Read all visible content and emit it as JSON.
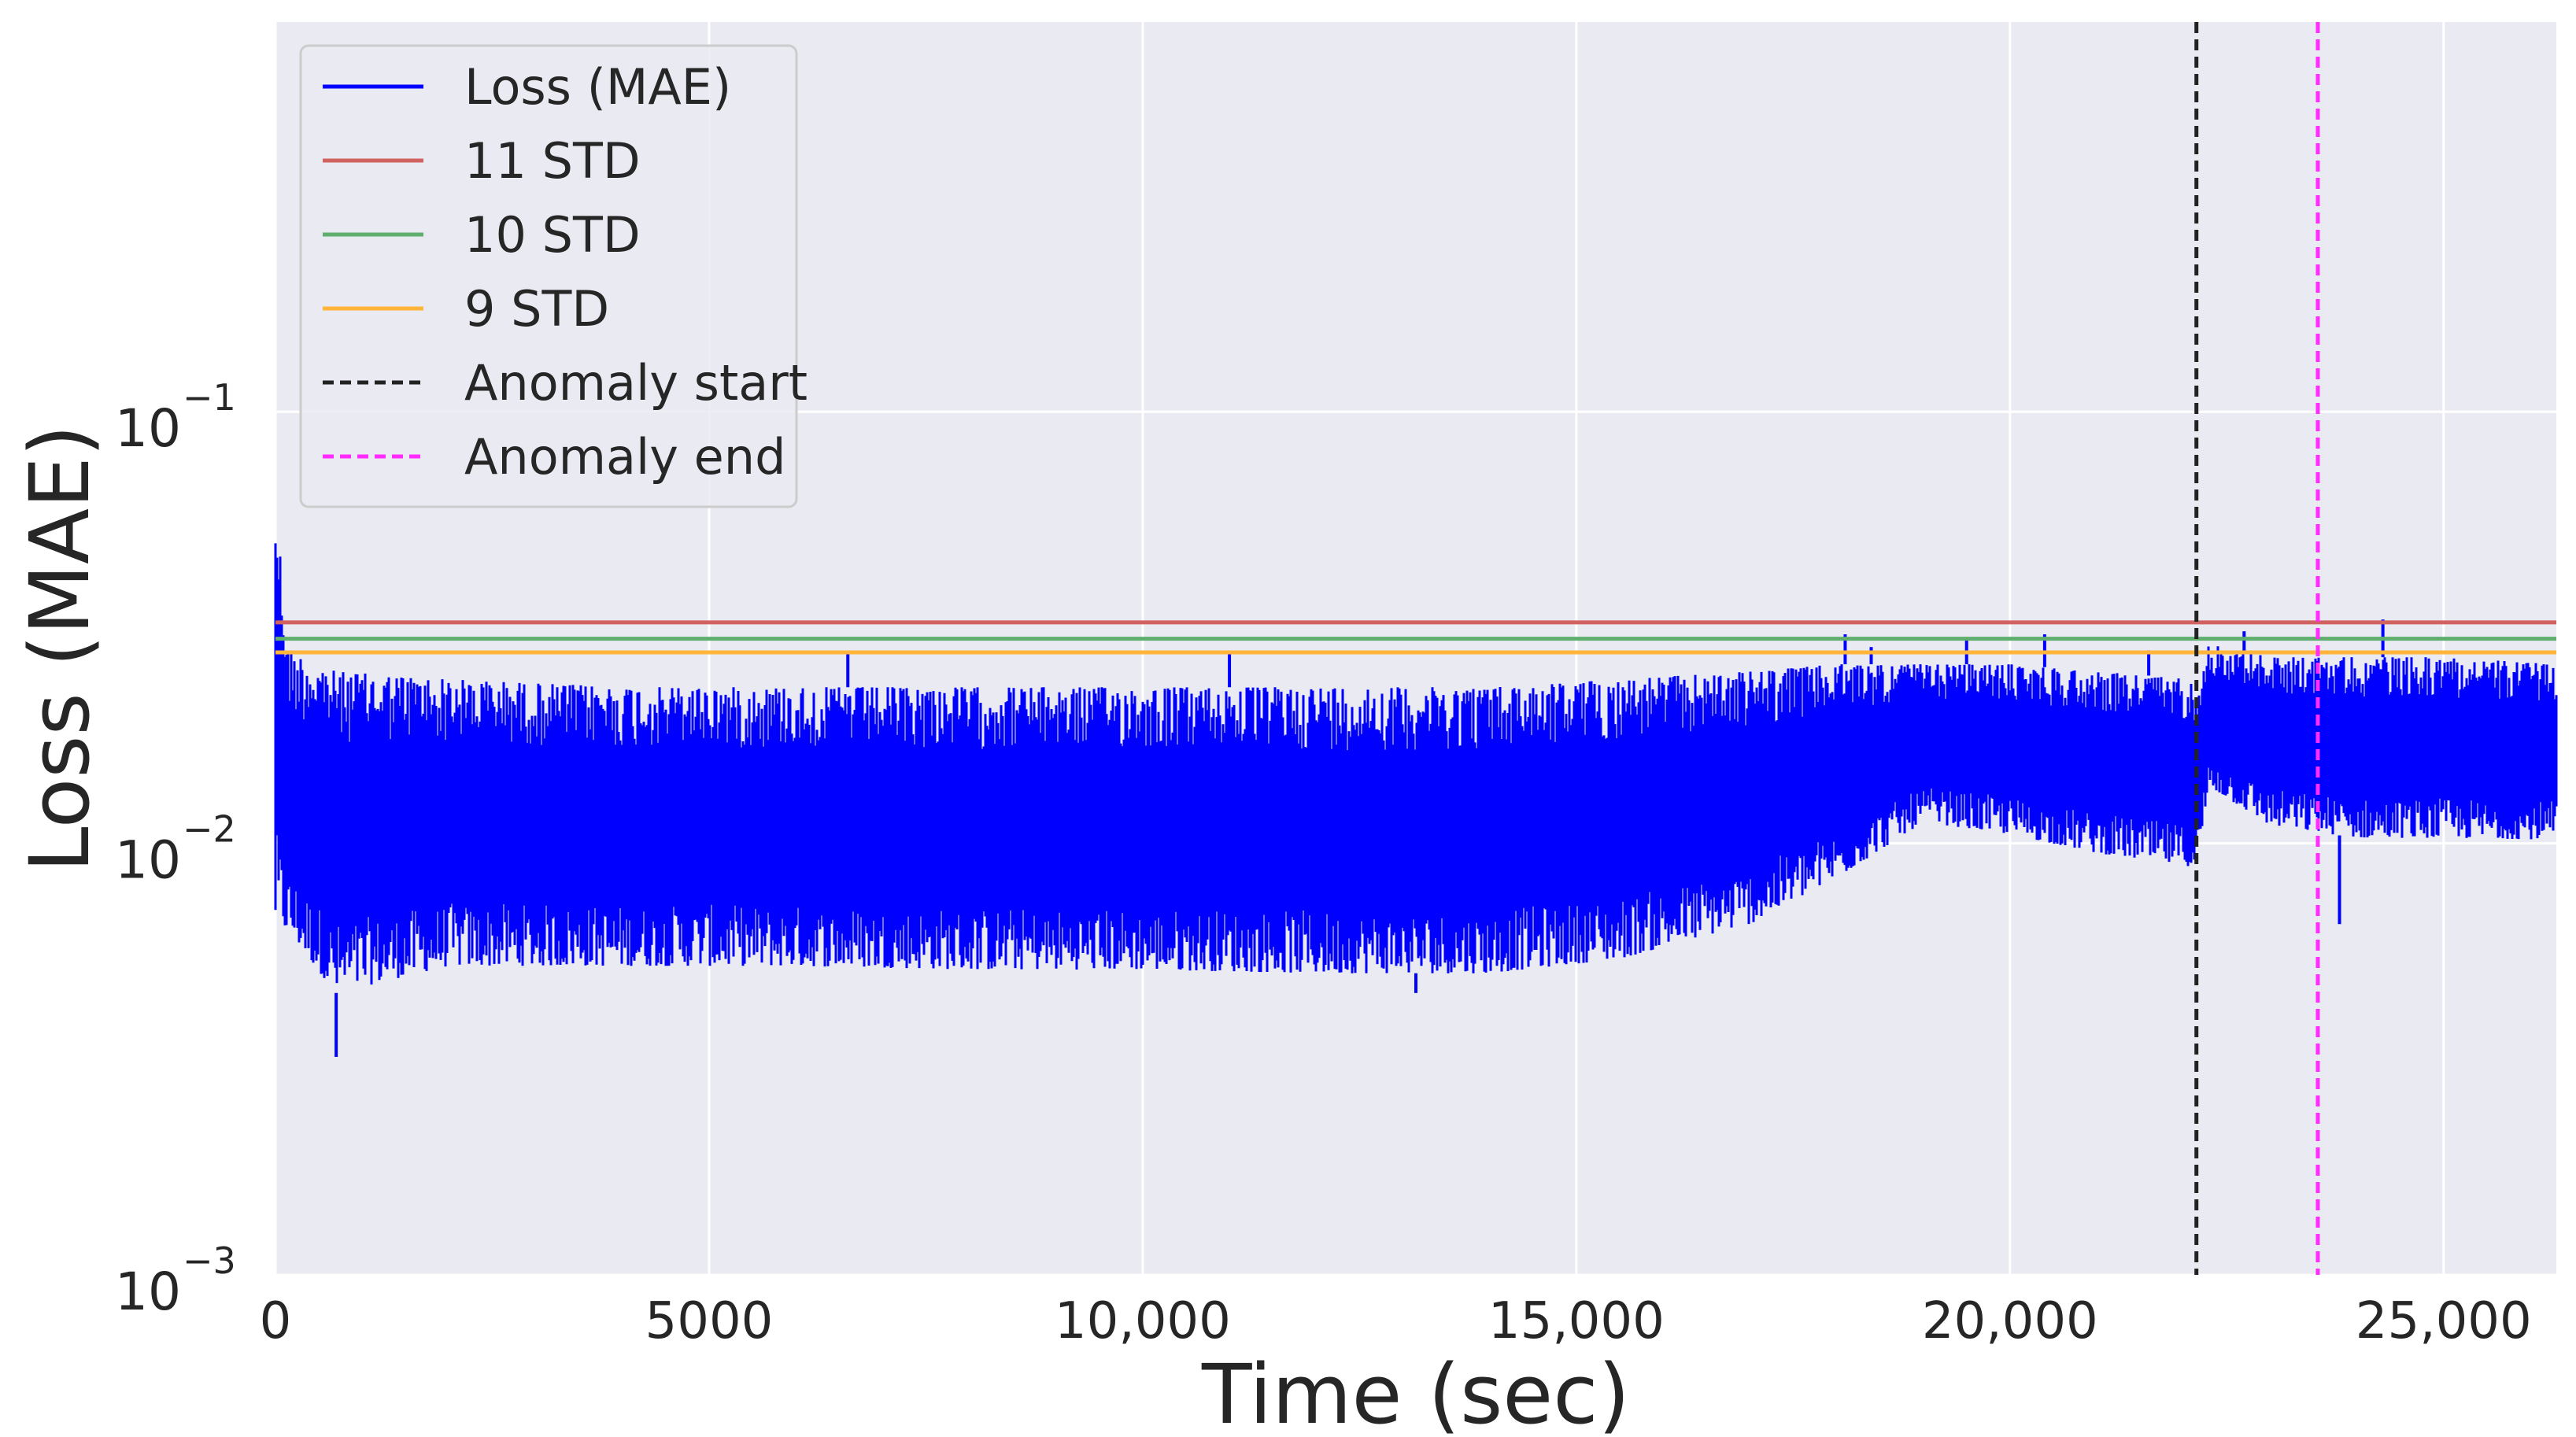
{
  "chart_data": {
    "type": "line",
    "xlabel": "Time (sec)",
    "ylabel": "Loss (MAE)",
    "yscale": "log",
    "xlim": [
      0,
      26300
    ],
    "ylim": [
      0.001,
      0.8
    ],
    "grid": true,
    "legend_placement": "top-left",
    "x_ticks": [
      {
        "value": 0,
        "label": "0"
      },
      {
        "value": 5000,
        "label": "5000"
      },
      {
        "value": 10000,
        "label": "10,000"
      },
      {
        "value": 15000,
        "label": "15,000"
      },
      {
        "value": 20000,
        "label": "20,000"
      },
      {
        "value": 25000,
        "label": "25,000"
      }
    ],
    "y_ticks": [
      {
        "value": 0.001,
        "base": "10",
        "exp": "−3"
      },
      {
        "value": 0.01,
        "base": "10",
        "exp": "−2"
      },
      {
        "value": 0.1,
        "base": "10",
        "exp": "−1"
      }
    ],
    "series": [
      {
        "name": "Loss (MAE)",
        "color": "#0000ff",
        "style": "solid",
        "profile": [
          {
            "x": 0,
            "low": 0.0065,
            "high": 0.064
          },
          {
            "x": 150,
            "low": 0.0062,
            "high": 0.028
          },
          {
            "x": 700,
            "low": 0.0045,
            "high": 0.025
          },
          {
            "x": 2000,
            "low": 0.0052,
            "high": 0.024
          },
          {
            "x": 4000,
            "low": 0.0052,
            "high": 0.023
          },
          {
            "x": 6000,
            "low": 0.0052,
            "high": 0.023
          },
          {
            "x": 8000,
            "low": 0.0051,
            "high": 0.023
          },
          {
            "x": 10000,
            "low": 0.0051,
            "high": 0.023
          },
          {
            "x": 12000,
            "low": 0.005,
            "high": 0.023
          },
          {
            "x": 14000,
            "low": 0.005,
            "high": 0.023
          },
          {
            "x": 15500,
            "low": 0.0054,
            "high": 0.024
          },
          {
            "x": 17000,
            "low": 0.0065,
            "high": 0.025
          },
          {
            "x": 18000,
            "low": 0.0083,
            "high": 0.026
          },
          {
            "x": 19000,
            "low": 0.0112,
            "high": 0.026
          },
          {
            "x": 20000,
            "low": 0.0105,
            "high": 0.026
          },
          {
            "x": 21000,
            "low": 0.0095,
            "high": 0.025
          },
          {
            "x": 22150,
            "low": 0.0088,
            "high": 0.024
          },
          {
            "x": 22300,
            "low": 0.0135,
            "high": 0.029
          },
          {
            "x": 23000,
            "low": 0.011,
            "high": 0.027
          },
          {
            "x": 24000,
            "low": 0.0103,
            "high": 0.027
          },
          {
            "x": 25000,
            "low": 0.0103,
            "high": 0.027
          },
          {
            "x": 26300,
            "low": 0.0102,
            "high": 0.026
          }
        ],
        "spikes": [
          {
            "x": 0,
            "value": 0.064
          },
          {
            "x": 700,
            "value": 0.0032
          },
          {
            "x": 6600,
            "value": 0.0275
          },
          {
            "x": 11000,
            "value": 0.0275
          },
          {
            "x": 13150,
            "value": 0.0045
          },
          {
            "x": 18100,
            "value": 0.0305
          },
          {
            "x": 18400,
            "value": 0.0285
          },
          {
            "x": 19500,
            "value": 0.0295
          },
          {
            "x": 20400,
            "value": 0.0305
          },
          {
            "x": 21600,
            "value": 0.028
          },
          {
            "x": 22700,
            "value": 0.031
          },
          {
            "x": 23800,
            "value": 0.0065
          },
          {
            "x": 24300,
            "value": 0.033
          }
        ]
      },
      {
        "name": "11 STD",
        "color": "#d0625f",
        "style": "solid",
        "y": 0.0325
      },
      {
        "name": "10 STD",
        "color": "#5fae6e",
        "style": "solid",
        "y": 0.0298
      },
      {
        "name": "9 STD",
        "color": "#ffb43a",
        "style": "solid",
        "y": 0.0277
      },
      {
        "name": "Anomaly start",
        "color": "#222222",
        "style": "dashed",
        "x": 22150
      },
      {
        "name": "Anomaly end",
        "color": "#ff2bff",
        "style": "dashed",
        "x": 23550
      }
    ]
  }
}
